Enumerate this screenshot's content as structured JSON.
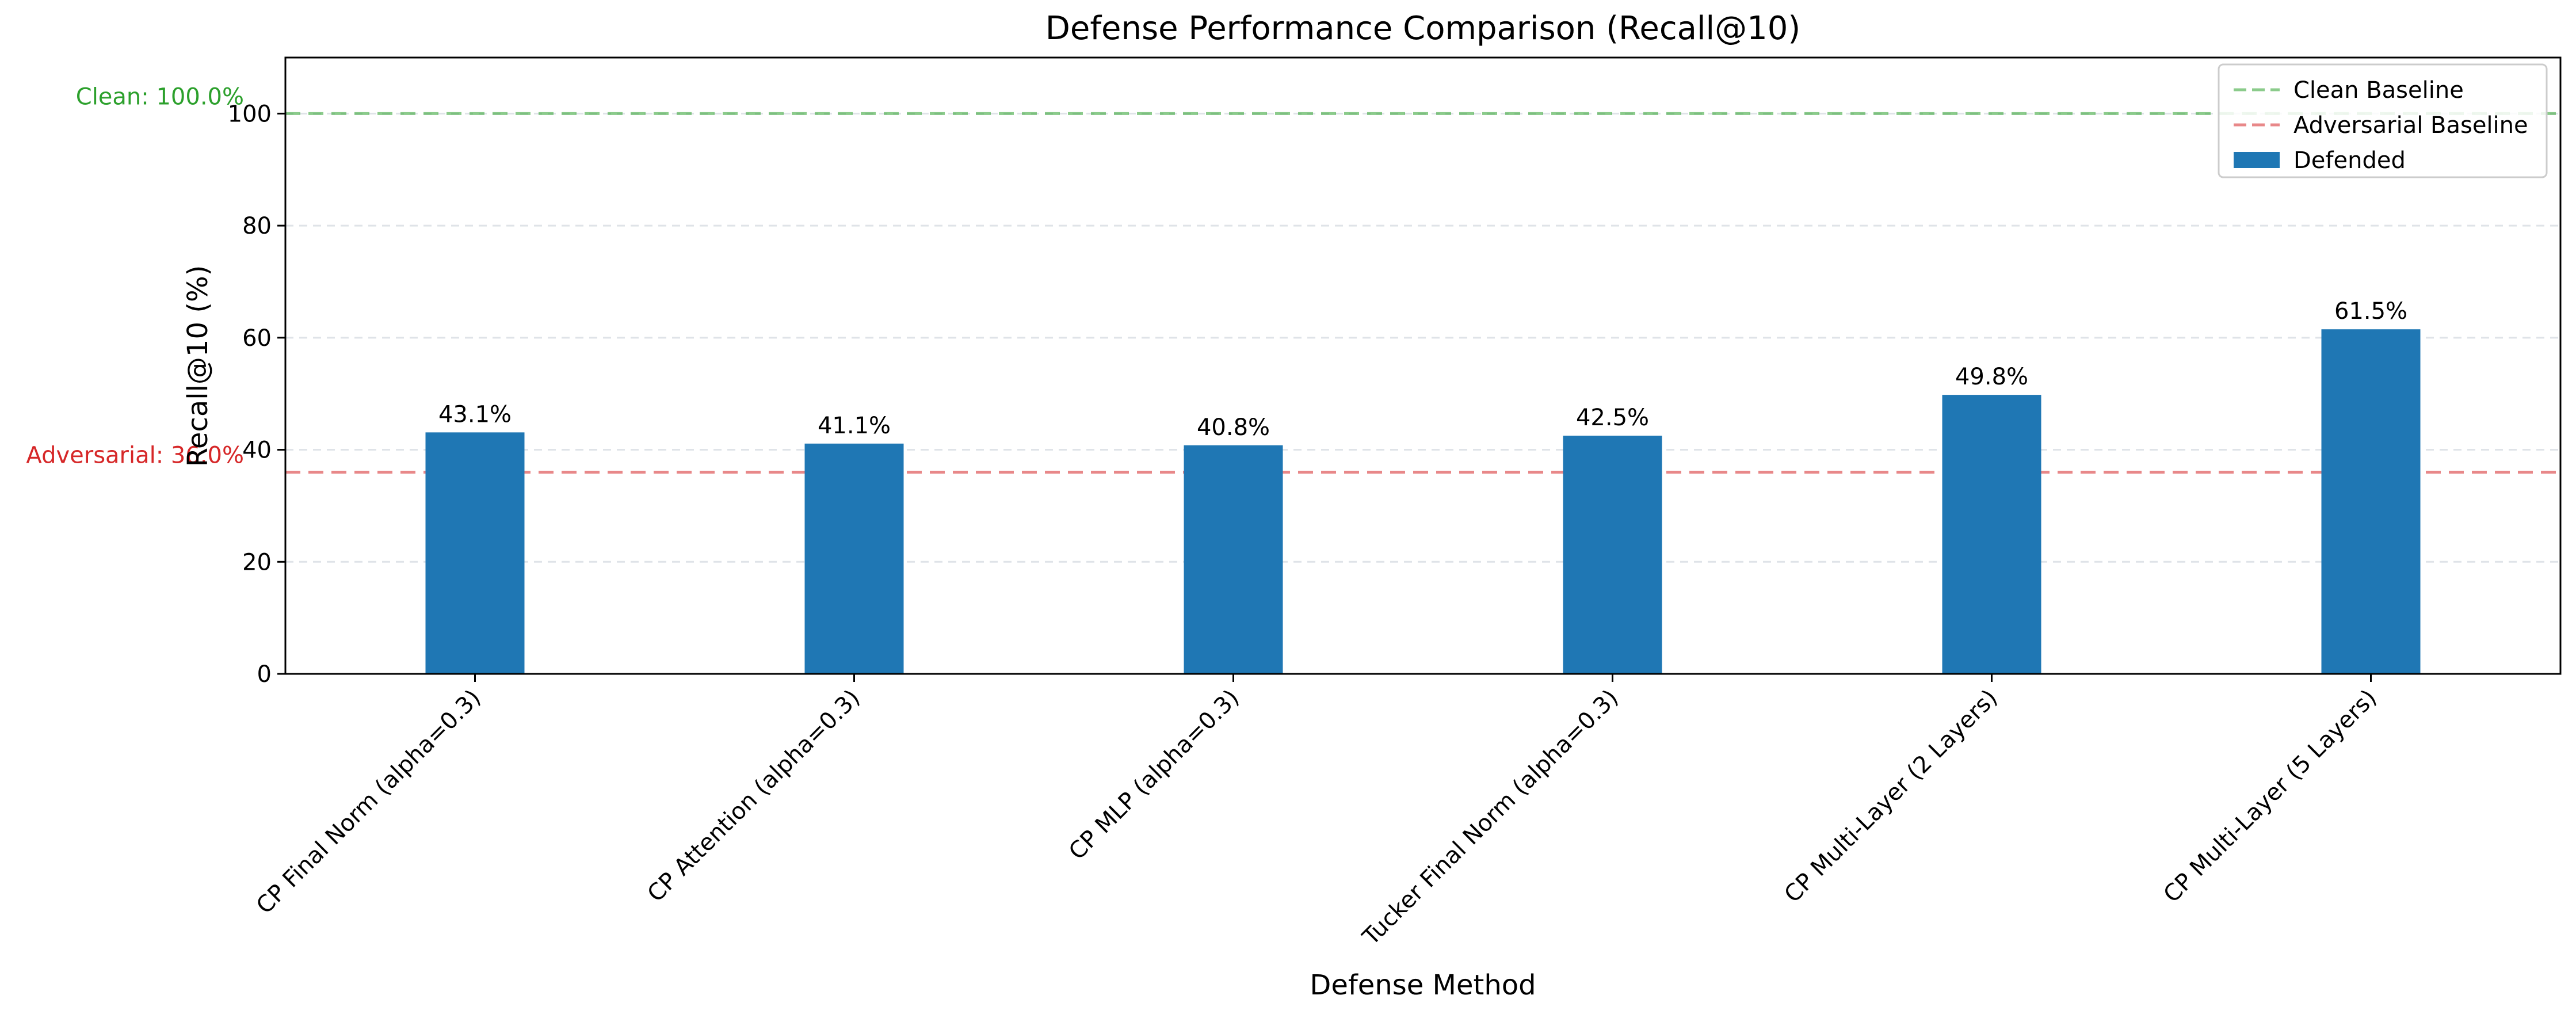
{
  "chart_data": {
    "type": "bar",
    "title": "Defense Performance Comparison (Recall@10)",
    "xlabel": "Defense Method",
    "ylabel": "Recall@10 (%)",
    "ylim": [
      0,
      110
    ],
    "yticks": [
      0,
      20,
      40,
      60,
      80,
      100
    ],
    "grid": "y-dashed",
    "legend_position": "top-right",
    "categories": [
      "CP Final Norm (alpha=0.3)",
      "CP Attention (alpha=0.3)",
      "CP MLP (alpha=0.3)",
      "Tucker Final Norm (alpha=0.3)",
      "CP Multi-Layer (2 Layers)",
      "CP Multi-Layer (5 Layers)"
    ],
    "series": [
      {
        "name": "Defended",
        "color": "#1f77b4",
        "values": [
          43.1,
          41.1,
          40.8,
          42.5,
          49.8,
          61.5
        ],
        "data_labels": [
          "43.1%",
          "41.1%",
          "40.8%",
          "42.5%",
          "49.8%",
          "61.5%"
        ]
      }
    ],
    "reference_lines": [
      {
        "name": "Clean Baseline",
        "value": 100.0,
        "label": "Clean: 100.0%",
        "color": "#2ca02c",
        "style": "dashed"
      },
      {
        "name": "Adversarial Baseline",
        "value": 36.0,
        "label": "Adversarial: 36.0%",
        "color": "#d62728",
        "style": "dashed"
      }
    ]
  }
}
